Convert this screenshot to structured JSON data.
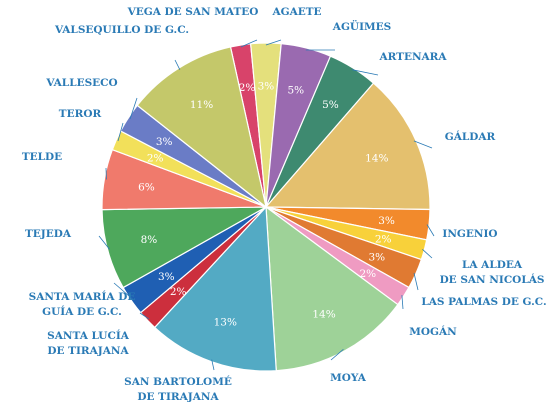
{
  "chart_data": {
    "type": "pie",
    "title": "",
    "start_angle_deg": -12.5,
    "direction": "clockwise",
    "legend": "none (labels outside slices)",
    "slices": [
      {
        "name": "VEGA DE SAN MATEO",
        "value": 2,
        "label": "2%",
        "color": "#d8436a"
      },
      {
        "name": "AGAETE",
        "value": 3,
        "label": "3%",
        "color": "#e4e07c"
      },
      {
        "name": "AGÜIMES",
        "value": 5,
        "label": "5%",
        "color": "#9a6ab0"
      },
      {
        "name": "ARTENARA",
        "value": 5,
        "label": "5%",
        "color": "#3e8a70"
      },
      {
        "name": "GÁLDAR",
        "value": 14,
        "label": "14%",
        "color": "#e4c06e"
      },
      {
        "name": "INGENIO",
        "value": 3,
        "label": "3%",
        "color": "#f28a2c"
      },
      {
        "name": "LA ALDEA DE SAN NICOLÁS",
        "value": 2,
        "label": "2%",
        "color": "#f8d13a"
      },
      {
        "name": "LAS PALMAS DE G.C.",
        "value": 3,
        "label": "3%",
        "color": "#e07a32"
      },
      {
        "name": "MOGÁN",
        "value": 2,
        "label": "2%",
        "color": "#ef9bc2"
      },
      {
        "name": "MOYA",
        "value": 14,
        "label": "14%",
        "color": "#9ed298"
      },
      {
        "name": "SAN BARTOLOMÉ DE TIRAJANA",
        "value": 13,
        "label": "13%",
        "color": "#53aac4"
      },
      {
        "name": "SANTA LUCÍA DE TIRAJANA",
        "value": 2,
        "label": "2%",
        "color": "#cc2f3d"
      },
      {
        "name": "SANTA MARÍA DE GUÍA DE G.C.",
        "value": 3,
        "label": "3%",
        "color": "#1f5fb3"
      },
      {
        "name": "TEJEDA",
        "value": 8,
        "label": "8%",
        "color": "#4ea85c"
      },
      {
        "name": "TELDE",
        "value": 6,
        "label": "6%",
        "color": "#f07a6c"
      },
      {
        "name": "TEROR",
        "value": 2,
        "label": "2%",
        "color": "#f2e05a"
      },
      {
        "name": "VALLESECO",
        "value": 3,
        "label": "3%",
        "color": "#6a7cc6"
      },
      {
        "name": "VALSEQUILLO DE G.C.",
        "value": 11,
        "label": "11%",
        "color": "#c4c86a"
      }
    ]
  }
}
